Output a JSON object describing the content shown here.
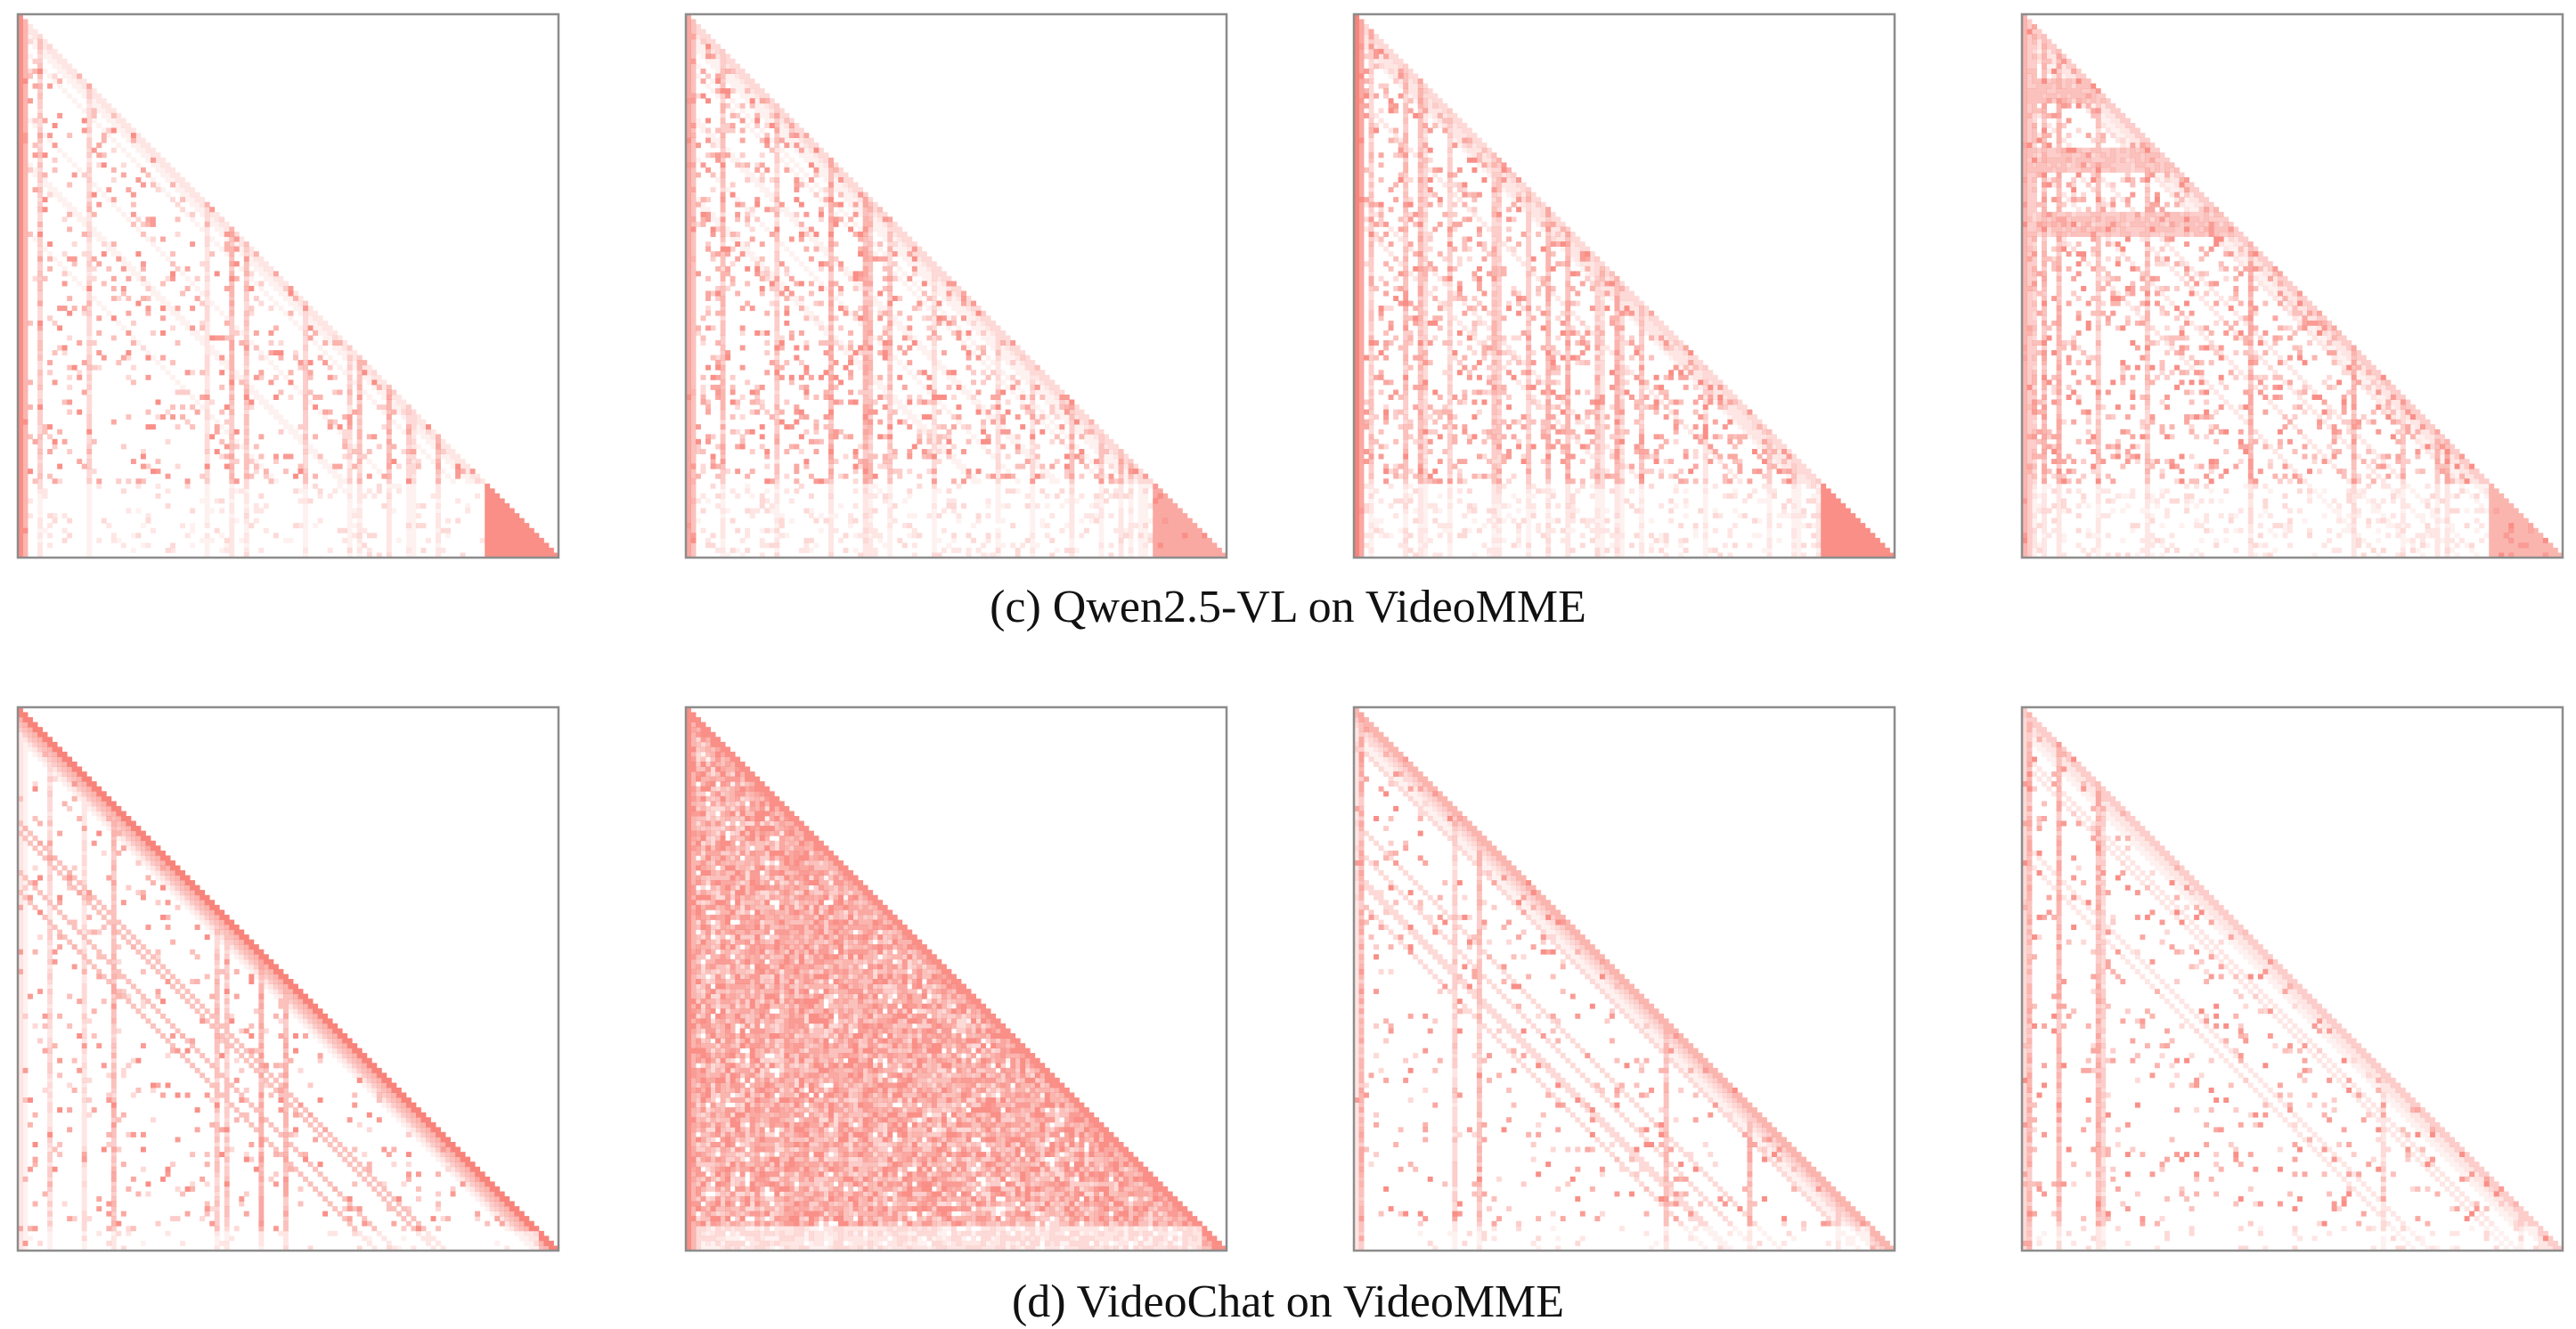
{
  "figure": {
    "colors": {
      "attention": "#f8837a",
      "frame": "#8c8c8c",
      "background": "#ffffff"
    },
    "rows": [
      {
        "id": "c",
        "caption": "(c) Qwen2.5-VL on VideoMME"
      },
      {
        "id": "d",
        "caption": "(d) VideoChat on VideoMME"
      }
    ]
  },
  "chart_data": [
    {
      "type": "heatmap",
      "group": "(c) Qwen2.5-VL on VideoMME",
      "panel": 1,
      "mask": "lower-triangular",
      "pattern": "attention-sink on first key column, sparse vertical stripes, dense triangular block at final tokens",
      "first_column_intensity": 0.85,
      "background_density": 0.12,
      "vertical_stripe_density": 0.3,
      "diagonal_band_intensity": 0.15,
      "text_block_start_fraction": 0.87,
      "text_block_intensity": 0.92
    },
    {
      "type": "heatmap",
      "group": "(c) Qwen2.5-VL on VideoMME",
      "panel": 2,
      "mask": "lower-triangular",
      "pattern": "denser scattered attention with many vertical stripes, triangular block at final tokens",
      "first_column_intensity": 0.7,
      "background_density": 0.2,
      "vertical_stripe_density": 0.45,
      "diagonal_band_intensity": 0.25,
      "text_block_start_fraction": 0.87,
      "text_block_intensity": 0.7
    },
    {
      "type": "heatmap",
      "group": "(c) Qwen2.5-VL on VideoMME",
      "panel": 3,
      "mask": "lower-triangular",
      "pattern": "strong sink columns at left edge, dense vertical stripes, triangular block at final tokens",
      "first_column_intensity": 0.95,
      "background_density": 0.22,
      "vertical_stripe_density": 0.5,
      "diagonal_band_intensity": 0.3,
      "text_block_start_fraction": 0.87,
      "text_block_intensity": 0.85
    },
    {
      "type": "heatmap",
      "group": "(c) Qwen2.5-VL on VideoMME",
      "panel": 4,
      "mask": "lower-triangular",
      "pattern": "horizontal high-attention bands across query rows, vertical stripes, small block at final tokens",
      "first_column_intensity": 0.6,
      "background_density": 0.2,
      "vertical_stripe_density": 0.4,
      "diagonal_band_intensity": 0.35,
      "text_block_start_fraction": 0.87,
      "text_block_intensity": 0.55
    },
    {
      "type": "heatmap",
      "group": "(d) VideoChat on VideoMME",
      "panel": 1,
      "mask": "lower-triangular",
      "pattern": "strong near-diagonal local attention with parallel off-diagonal bands",
      "first_column_intensity": 0.15,
      "background_density": 0.08,
      "vertical_stripe_density": 0.15,
      "diagonal_band_intensity": 0.95,
      "text_block_start_fraction": 0.97,
      "text_block_intensity": 0.2
    },
    {
      "type": "heatmap",
      "group": "(d) VideoChat on VideoMME",
      "panel": 2,
      "mask": "lower-triangular",
      "pattern": "nearly uniformly dense lower triangle with diagonal striations",
      "first_column_intensity": 0.9,
      "background_density": 0.92,
      "vertical_stripe_density": 0.5,
      "diagonal_band_intensity": 0.9,
      "text_block_start_fraction": 0.96,
      "text_block_intensity": 0.3
    },
    {
      "type": "heatmap",
      "group": "(d) VideoChat on VideoMME",
      "panel": 3,
      "mask": "lower-triangular",
      "pattern": "faint sparse attention concentrated along the diagonal with thin parallel bands",
      "first_column_intensity": 0.2,
      "background_density": 0.07,
      "vertical_stripe_density": 0.2,
      "diagonal_band_intensity": 0.55,
      "text_block_start_fraction": 0.96,
      "text_block_intensity": 0.25
    },
    {
      "type": "heatmap",
      "group": "(d) VideoChat on VideoMME",
      "panel": 4,
      "mask": "lower-triangular",
      "pattern": "very faint diffuse attention with light diagonal bands",
      "first_column_intensity": 0.25,
      "background_density": 0.09,
      "vertical_stripe_density": 0.2,
      "diagonal_band_intensity": 0.35,
      "text_block_start_fraction": 0.96,
      "text_block_intensity": 0.2
    }
  ]
}
